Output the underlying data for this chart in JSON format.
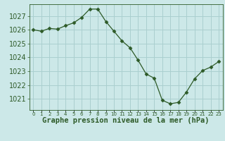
{
  "x": [
    0,
    1,
    2,
    3,
    4,
    5,
    6,
    7,
    8,
    9,
    10,
    11,
    12,
    13,
    14,
    15,
    16,
    17,
    18,
    19,
    20,
    21,
    22,
    23
  ],
  "y": [
    1026.0,
    1025.9,
    1026.1,
    1026.05,
    1026.3,
    1026.5,
    1026.9,
    1027.5,
    1027.5,
    1026.6,
    1025.9,
    1025.2,
    1024.7,
    1023.8,
    1022.8,
    1022.5,
    1020.9,
    1020.65,
    1020.75,
    1021.5,
    1022.45,
    1023.05,
    1023.3,
    1023.7
  ],
  "line_color": "#2d5a27",
  "marker": "D",
  "marker_size": 2.5,
  "bg_color": "#cce8e8",
  "grid_color": "#aacfcf",
  "ylabel_ticks": [
    1021,
    1022,
    1023,
    1024,
    1025,
    1026,
    1027
  ],
  "xtick_labels": [
    "0",
    "1",
    "2",
    "3",
    "4",
    "5",
    "6",
    "7",
    "8",
    "9",
    "10",
    "11",
    "12",
    "13",
    "14",
    "15",
    "16",
    "17",
    "18",
    "19",
    "20",
    "21",
    "22",
    "23"
  ],
  "xlabel": "Graphe pression niveau de la mer (hPa)",
  "xlabel_fontsize": 7.5,
  "ytick_fontsize": 7,
  "xtick_fontsize": 5.0,
  "ylim_min": 1020.2,
  "ylim_max": 1027.85,
  "xlim_min": -0.5,
  "xlim_max": 23.5
}
